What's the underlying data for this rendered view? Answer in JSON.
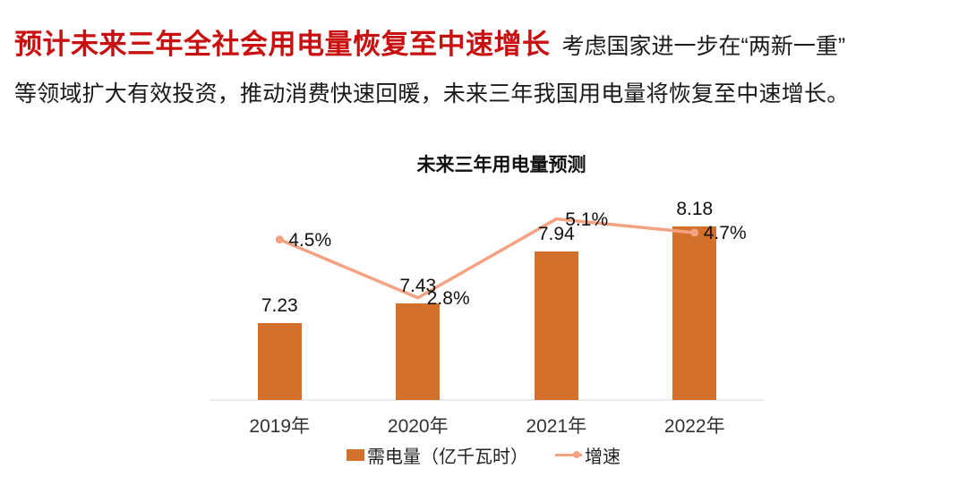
{
  "page": {
    "background": "#ffffff"
  },
  "header": {
    "headline": "预计未来三年全社会用电量恢复至中速增长",
    "headline_color": "#c81010",
    "intro_line1": "考虑国家进一步在“两新一重”",
    "intro_line2": "等领域扩大有效投资，推动消费快速回暖，未来三年我国用电量将恢复至中速增长。"
  },
  "chart_data": {
    "type": "combo",
    "title": "未来三年用电量预测",
    "categories": [
      "2019年",
      "2020年",
      "2021年",
      "2022年"
    ],
    "series": [
      {
        "name": "需电量（亿千瓦时）",
        "type": "bar",
        "values": [
          7.23,
          7.43,
          7.94,
          8.18
        ],
        "data_labels": [
          "7.23",
          "7.43",
          "7.94",
          "8.18"
        ],
        "color": "#d2702c"
      },
      {
        "name": "增速",
        "type": "line",
        "values": [
          4.5,
          2.8,
          5.1,
          4.7
        ],
        "data_labels": [
          "4.5%",
          "2.8%",
          "5.1%",
          "4.7%"
        ],
        "color": "#f3a282"
      }
    ],
    "legend": {
      "position": "bottom",
      "entries": [
        "需电量（亿千瓦时）",
        "增速"
      ]
    },
    "axes": {
      "value_axis_visible": false,
      "bar_axis_min_estimate": 6.48,
      "x_axis_line_color": "#ececec",
      "gridlines": false,
      "data_labels_shown": true
    }
  }
}
